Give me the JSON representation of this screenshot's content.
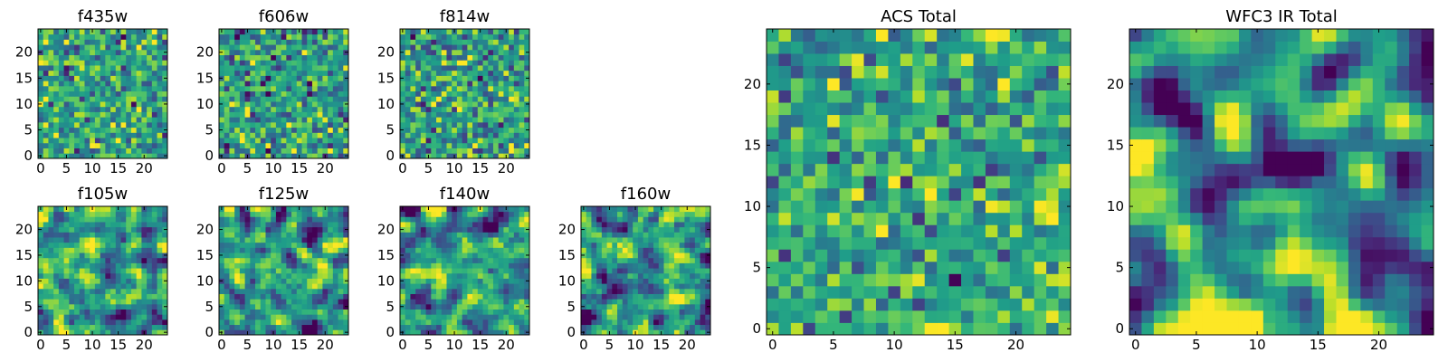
{
  "figure": {
    "colormap": "viridis",
    "value_range": [
      0,
      1
    ],
    "grid": false,
    "legend": false
  },
  "chart_data": [
    {
      "type": "heatmap",
      "title": "f435w",
      "size": 25,
      "seed": 11,
      "smooth": 0,
      "bias": 0.58,
      "contrast": 0.9,
      "xticks": [
        "0",
        "5",
        "10",
        "15",
        "20"
      ],
      "yticks": [
        "0",
        "5",
        "10",
        "15",
        "20"
      ],
      "xlim": [
        0,
        24
      ],
      "ylim": [
        0,
        24
      ]
    },
    {
      "type": "heatmap",
      "title": "f606w",
      "size": 25,
      "seed": 23,
      "smooth": 0,
      "bias": 0.55,
      "contrast": 0.95,
      "xticks": [
        "0",
        "5",
        "10",
        "15",
        "20"
      ],
      "yticks": [
        "0",
        "5",
        "10",
        "15",
        "20"
      ],
      "xlim": [
        0,
        24
      ],
      "ylim": [
        0,
        24
      ]
    },
    {
      "type": "heatmap",
      "title": "f814w",
      "size": 25,
      "seed": 37,
      "smooth": 0,
      "bias": 0.56,
      "contrast": 0.95,
      "xticks": [
        "0",
        "5",
        "10",
        "15",
        "20"
      ],
      "yticks": [
        "0",
        "5",
        "10",
        "15",
        "20"
      ],
      "xlim": [
        0,
        24
      ],
      "ylim": [
        0,
        24
      ]
    },
    {
      "type": "heatmap",
      "title": "f105w",
      "size": 25,
      "seed": 41,
      "smooth": 1,
      "bias": 0.55,
      "contrast": 1.0,
      "xticks": [
        "0",
        "5",
        "10",
        "15",
        "20"
      ],
      "yticks": [
        "0",
        "5",
        "10",
        "15",
        "20"
      ],
      "xlim": [
        0,
        24
      ],
      "ylim": [
        0,
        24
      ]
    },
    {
      "type": "heatmap",
      "title": "f125w",
      "size": 25,
      "seed": 53,
      "smooth": 1,
      "bias": 0.52,
      "contrast": 1.05,
      "xticks": [
        "0",
        "5",
        "10",
        "15",
        "20"
      ],
      "yticks": [
        "0",
        "5",
        "10",
        "15",
        "20"
      ],
      "xlim": [
        0,
        24
      ],
      "ylim": [
        0,
        24
      ]
    },
    {
      "type": "heatmap",
      "title": "f140w",
      "size": 25,
      "seed": 67,
      "smooth": 1,
      "bias": 0.52,
      "contrast": 1.05,
      "xticks": [
        "0",
        "5",
        "10",
        "15",
        "20"
      ],
      "yticks": [
        "0",
        "5",
        "10",
        "15",
        "20"
      ],
      "xlim": [
        0,
        24
      ],
      "ylim": [
        0,
        24
      ]
    },
    {
      "type": "heatmap",
      "title": "f160w",
      "size": 25,
      "seed": 79,
      "smooth": 1,
      "bias": 0.52,
      "contrast": 1.1,
      "xticks": [
        "0",
        "5",
        "10",
        "15",
        "20"
      ],
      "yticks": [
        "0",
        "5",
        "10",
        "15",
        "20"
      ],
      "xlim": [
        0,
        24
      ],
      "ylim": [
        0,
        24
      ]
    },
    {
      "type": "heatmap",
      "title": "ACS Total",
      "size": 25,
      "seed": 97,
      "smooth": 0,
      "bias": 0.6,
      "contrast": 0.85,
      "xticks": [
        "0",
        "5",
        "10",
        "15",
        "20"
      ],
      "yticks": [
        "0",
        "5",
        "10",
        "15",
        "20"
      ],
      "xlim": [
        0,
        24
      ],
      "ylim": [
        0,
        24
      ]
    },
    {
      "type": "heatmap",
      "title": "WFC3 IR Total",
      "size": 25,
      "seed": 113,
      "smooth": 2,
      "bias": 0.5,
      "contrast": 1.35,
      "xticks": [
        "0",
        "5",
        "10",
        "15",
        "20"
      ],
      "yticks": [
        "0",
        "5",
        "10",
        "15",
        "20"
      ],
      "xlim": [
        0,
        24
      ],
      "ylim": [
        0,
        24
      ]
    }
  ]
}
